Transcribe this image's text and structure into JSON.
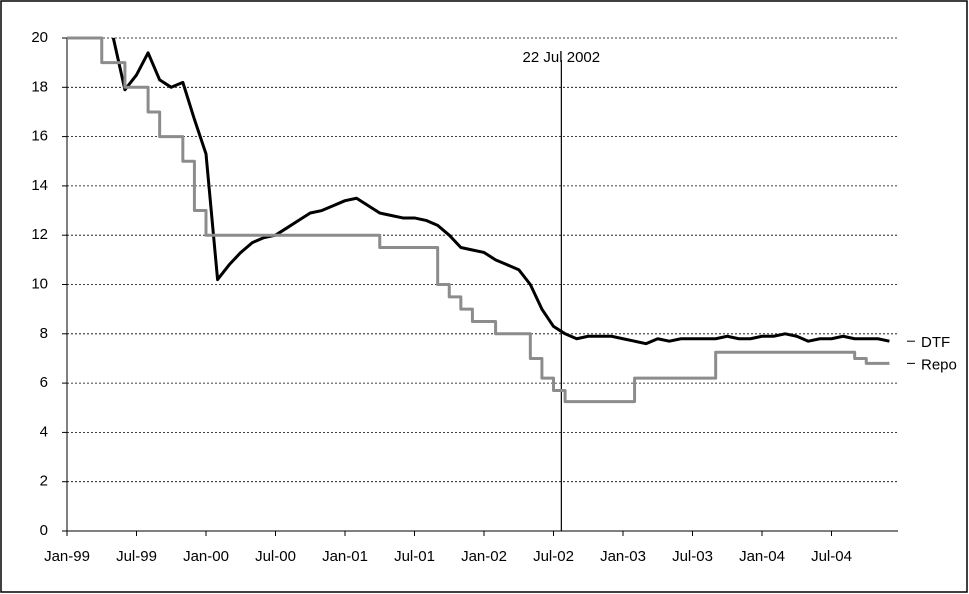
{
  "chart_data": {
    "type": "line",
    "x": [
      "1999-01",
      "1999-02",
      "1999-03",
      "1999-04",
      "1999-05",
      "1999-06",
      "1999-07",
      "1999-08",
      "1999-09",
      "1999-10",
      "1999-11",
      "1999-12",
      "2000-01",
      "2000-02",
      "2000-03",
      "2000-04",
      "2000-05",
      "2000-06",
      "2000-07",
      "2000-08",
      "2000-09",
      "2000-10",
      "2000-11",
      "2000-12",
      "2001-01",
      "2001-02",
      "2001-03",
      "2001-04",
      "2001-05",
      "2001-06",
      "2001-07",
      "2001-08",
      "2001-09",
      "2001-10",
      "2001-11",
      "2001-12",
      "2002-01",
      "2002-02",
      "2002-03",
      "2002-04",
      "2002-05",
      "2002-06",
      "2002-07",
      "2002-08",
      "2002-09",
      "2002-10",
      "2002-11",
      "2002-12",
      "2003-01",
      "2003-02",
      "2003-03",
      "2003-04",
      "2003-05",
      "2003-06",
      "2003-07",
      "2003-08",
      "2003-09",
      "2003-10",
      "2003-11",
      "2003-12",
      "2004-01",
      "2004-02",
      "2004-03",
      "2004-04",
      "2004-05",
      "2004-06",
      "2004-07",
      "2004-08",
      "2004-09",
      "2004-10",
      "2004-11",
      "2004-12"
    ],
    "series": [
      {
        "name": "DTF",
        "color": "#000000",
        "values": [
          null,
          null,
          null,
          null,
          20,
          17.9,
          18.5,
          19.4,
          18.3,
          18.0,
          18.2,
          16.7,
          15.3,
          10.2,
          10.8,
          11.3,
          11.7,
          11.9,
          12.0,
          12.3,
          12.6,
          12.9,
          13.0,
          13.2,
          13.4,
          13.5,
          13.2,
          12.9,
          12.8,
          12.7,
          12.7,
          12.6,
          12.4,
          12.0,
          11.5,
          11.4,
          11.3,
          11.0,
          10.8,
          10.6,
          10.0,
          9.0,
          8.3,
          8.0,
          7.8,
          7.9,
          7.9,
          7.9,
          7.8,
          7.7,
          7.6,
          7.8,
          7.7,
          7.8,
          7.8,
          7.8,
          7.8,
          7.9,
          7.8,
          7.8,
          7.9,
          7.9,
          8.0,
          7.9,
          7.7,
          7.8,
          7.8,
          7.9,
          7.8,
          7.8,
          7.8,
          7.7
        ]
      },
      {
        "name": "Repo",
        "color": "#8c8c8c",
        "step": "post",
        "values": [
          20,
          20,
          20,
          19,
          19,
          18,
          18,
          17,
          16,
          16,
          15,
          13,
          12,
          12,
          12,
          12,
          12,
          12,
          12,
          12,
          12,
          12,
          12,
          12,
          12,
          12,
          12,
          11.5,
          11.5,
          11.5,
          11.5,
          11.5,
          10,
          9.5,
          9,
          8.5,
          8.5,
          8,
          8,
          8,
          7,
          6.2,
          5.7,
          5.25,
          5.25,
          5.25,
          5.25,
          5.25,
          5.25,
          6.2,
          6.2,
          6.2,
          6.2,
          6.2,
          6.2,
          6.2,
          7.25,
          7.25,
          7.25,
          7.25,
          7.25,
          7.25,
          7.25,
          7.25,
          7.25,
          7.25,
          7.25,
          7.25,
          7,
          6.8,
          6.8,
          6.8
        ]
      }
    ],
    "xlim": [
      "1999-01",
      "2005-01"
    ],
    "xticks": [
      {
        "value": "1999-01",
        "label": "Jan-99"
      },
      {
        "value": "1999-07",
        "label": "Jul-99"
      },
      {
        "value": "2000-01",
        "label": "Jan-00"
      },
      {
        "value": "2000-07",
        "label": "Jul-00"
      },
      {
        "value": "2001-01",
        "label": "Jan-01"
      },
      {
        "value": "2001-07",
        "label": "Jul-01"
      },
      {
        "value": "2002-01",
        "label": "Jan-02"
      },
      {
        "value": "2002-07",
        "label": "Jul-02"
      },
      {
        "value": "2003-01",
        "label": "Jan-03"
      },
      {
        "value": "2003-07",
        "label": "Jul-03"
      },
      {
        "value": "2004-01",
        "label": "Jan-04"
      },
      {
        "value": "2004-07",
        "label": "Jul-04"
      }
    ],
    "ylim": [
      0,
      20
    ],
    "yticks": [
      0,
      2,
      4,
      6,
      8,
      10,
      12,
      14,
      16,
      18,
      20
    ],
    "grid": true,
    "annotations": [
      {
        "x": "2002-07-22",
        "label": "22 Jul 2002"
      }
    ]
  }
}
